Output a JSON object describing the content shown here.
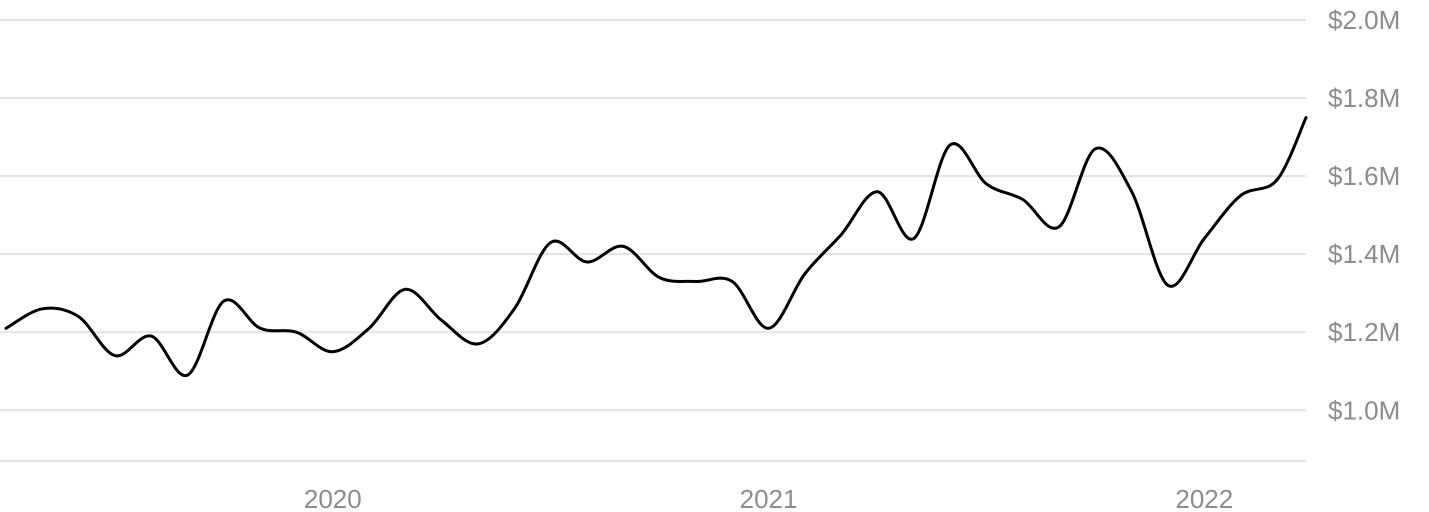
{
  "chart_data": {
    "type": "line",
    "title": "",
    "xlabel": "",
    "ylabel": "",
    "y_ticks": [
      {
        "value": 1.0,
        "label": "$1.0M"
      },
      {
        "value": 1.2,
        "label": "$1.2M"
      },
      {
        "value": 1.4,
        "label": "$1.4M"
      },
      {
        "value": 1.6,
        "label": "$1.6M"
      },
      {
        "value": 1.8,
        "label": "$1.8M"
      },
      {
        "value": 2.0,
        "label": "$2.0M"
      }
    ],
    "x_ticks": [
      {
        "value": "2020-01",
        "label": "2020"
      },
      {
        "value": "2021-01",
        "label": "2021"
      },
      {
        "value": "2022-01",
        "label": "2022"
      }
    ],
    "ylim": [
      0.87,
      2.0
    ],
    "xlim": [
      "2019-04",
      "2022-03"
    ],
    "grid": true,
    "y_axis_position": "right",
    "line_color": "#000000",
    "grid_color": "#e3e3e3",
    "label_color": "#8c8c8c",
    "series": [
      {
        "x": [
          "2019-04",
          "2019-05",
          "2019-06",
          "2019-07",
          "2019-08",
          "2019-09",
          "2019-10",
          "2019-11",
          "2019-12",
          "2020-01",
          "2020-02",
          "2020-03",
          "2020-04",
          "2020-05",
          "2020-06",
          "2020-07",
          "2020-08",
          "2020-09",
          "2020-10",
          "2020-11",
          "2020-12",
          "2021-01",
          "2021-02",
          "2021-03",
          "2021-04",
          "2021-05",
          "2021-06",
          "2021-07",
          "2021-08",
          "2021-09",
          "2021-10",
          "2021-11",
          "2021-12",
          "2022-01",
          "2022-02",
          "2022-03"
        ],
        "values": [
          1.21,
          1.26,
          1.24,
          1.14,
          1.19,
          1.09,
          1.28,
          1.21,
          1.2,
          1.15,
          1.21,
          1.31,
          1.23,
          1.17,
          1.26,
          1.43,
          1.38,
          1.42,
          1.34,
          1.33,
          1.33,
          1.21,
          1.35,
          1.45,
          1.56,
          1.44,
          1.68,
          1.58,
          1.54,
          1.47,
          1.67,
          1.56,
          1.32,
          1.44,
          1.55,
          1.59
        ]
      }
    ],
    "final_point": {
      "x": "2022-03-25",
      "value": 1.75
    }
  }
}
